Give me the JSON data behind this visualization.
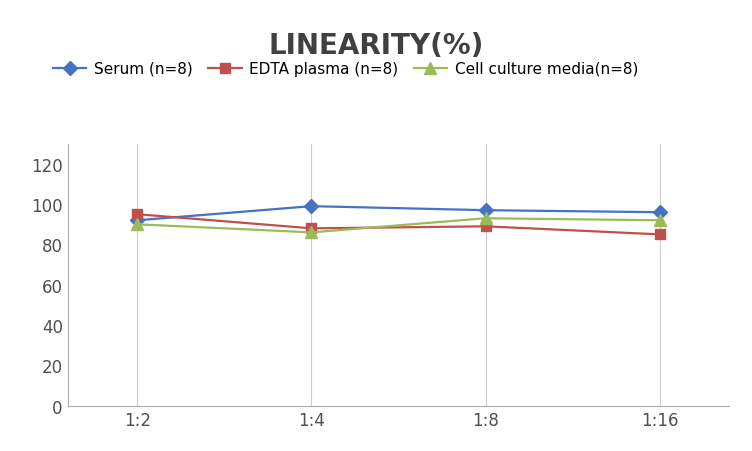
{
  "title": "LINEARITY(%)",
  "x_labels": [
    "1:2",
    "1:4",
    "1:8",
    "1:16"
  ],
  "series": [
    {
      "label": "Serum (n=8)",
      "values": [
        92,
        99,
        97,
        96
      ],
      "color": "#4472C4",
      "marker": "D",
      "marker_size": 7,
      "linestyle": "-"
    },
    {
      "label": "EDTA plasma (n=8)",
      "values": [
        95,
        88,
        89,
        85
      ],
      "color": "#C0504D",
      "marker": "s",
      "marker_size": 7,
      "linestyle": "-"
    },
    {
      "label": "Cell culture media(n=8)",
      "values": [
        90,
        86,
        93,
        92
      ],
      "color": "#9BBB59",
      "marker": "^",
      "marker_size": 8,
      "linestyle": "-"
    }
  ],
  "ylim": [
    0,
    130
  ],
  "yticks": [
    0,
    20,
    40,
    60,
    80,
    100,
    120
  ],
  "background_color": "#ffffff",
  "grid_color": "#cccccc",
  "title_fontsize": 20,
  "title_color": "#404040",
  "legend_fontsize": 11,
  "tick_fontsize": 12,
  "tick_color": "#505050",
  "linewidth": 1.6,
  "spine_color": "#aaaaaa"
}
